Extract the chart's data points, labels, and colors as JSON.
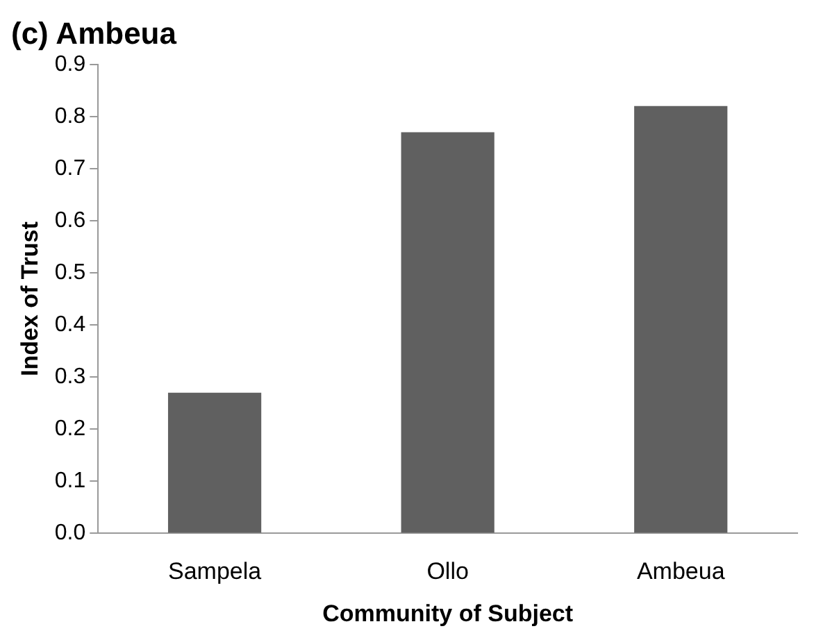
{
  "chart_data": {
    "type": "bar",
    "title": "(c) Ambeua",
    "xlabel": "Community of Subject",
    "ylabel": "Index of Trust",
    "categories": [
      "Sampela",
      "Ollo",
      "Ambeua"
    ],
    "values": [
      0.27,
      0.77,
      0.82
    ],
    "color": "#606060",
    "ylim": [
      0,
      0.9
    ],
    "yticks": [
      {
        "value": 0,
        "label": "0.0"
      },
      {
        "value": 0.1,
        "label": "0.1"
      },
      {
        "value": 0.2,
        "label": "0.2"
      },
      {
        "value": 0.3,
        "label": "0.3"
      },
      {
        "value": 0.4,
        "label": "0.4"
      },
      {
        "value": 0.5,
        "label": "0.5"
      },
      {
        "value": 0.6,
        "label": "0.6"
      },
      {
        "value": 0.7,
        "label": "0.7"
      },
      {
        "value": 0.8,
        "label": "0.8"
      },
      {
        "value": 0.9,
        "label": "0.9"
      }
    ],
    "grid": false,
    "legend": false
  }
}
